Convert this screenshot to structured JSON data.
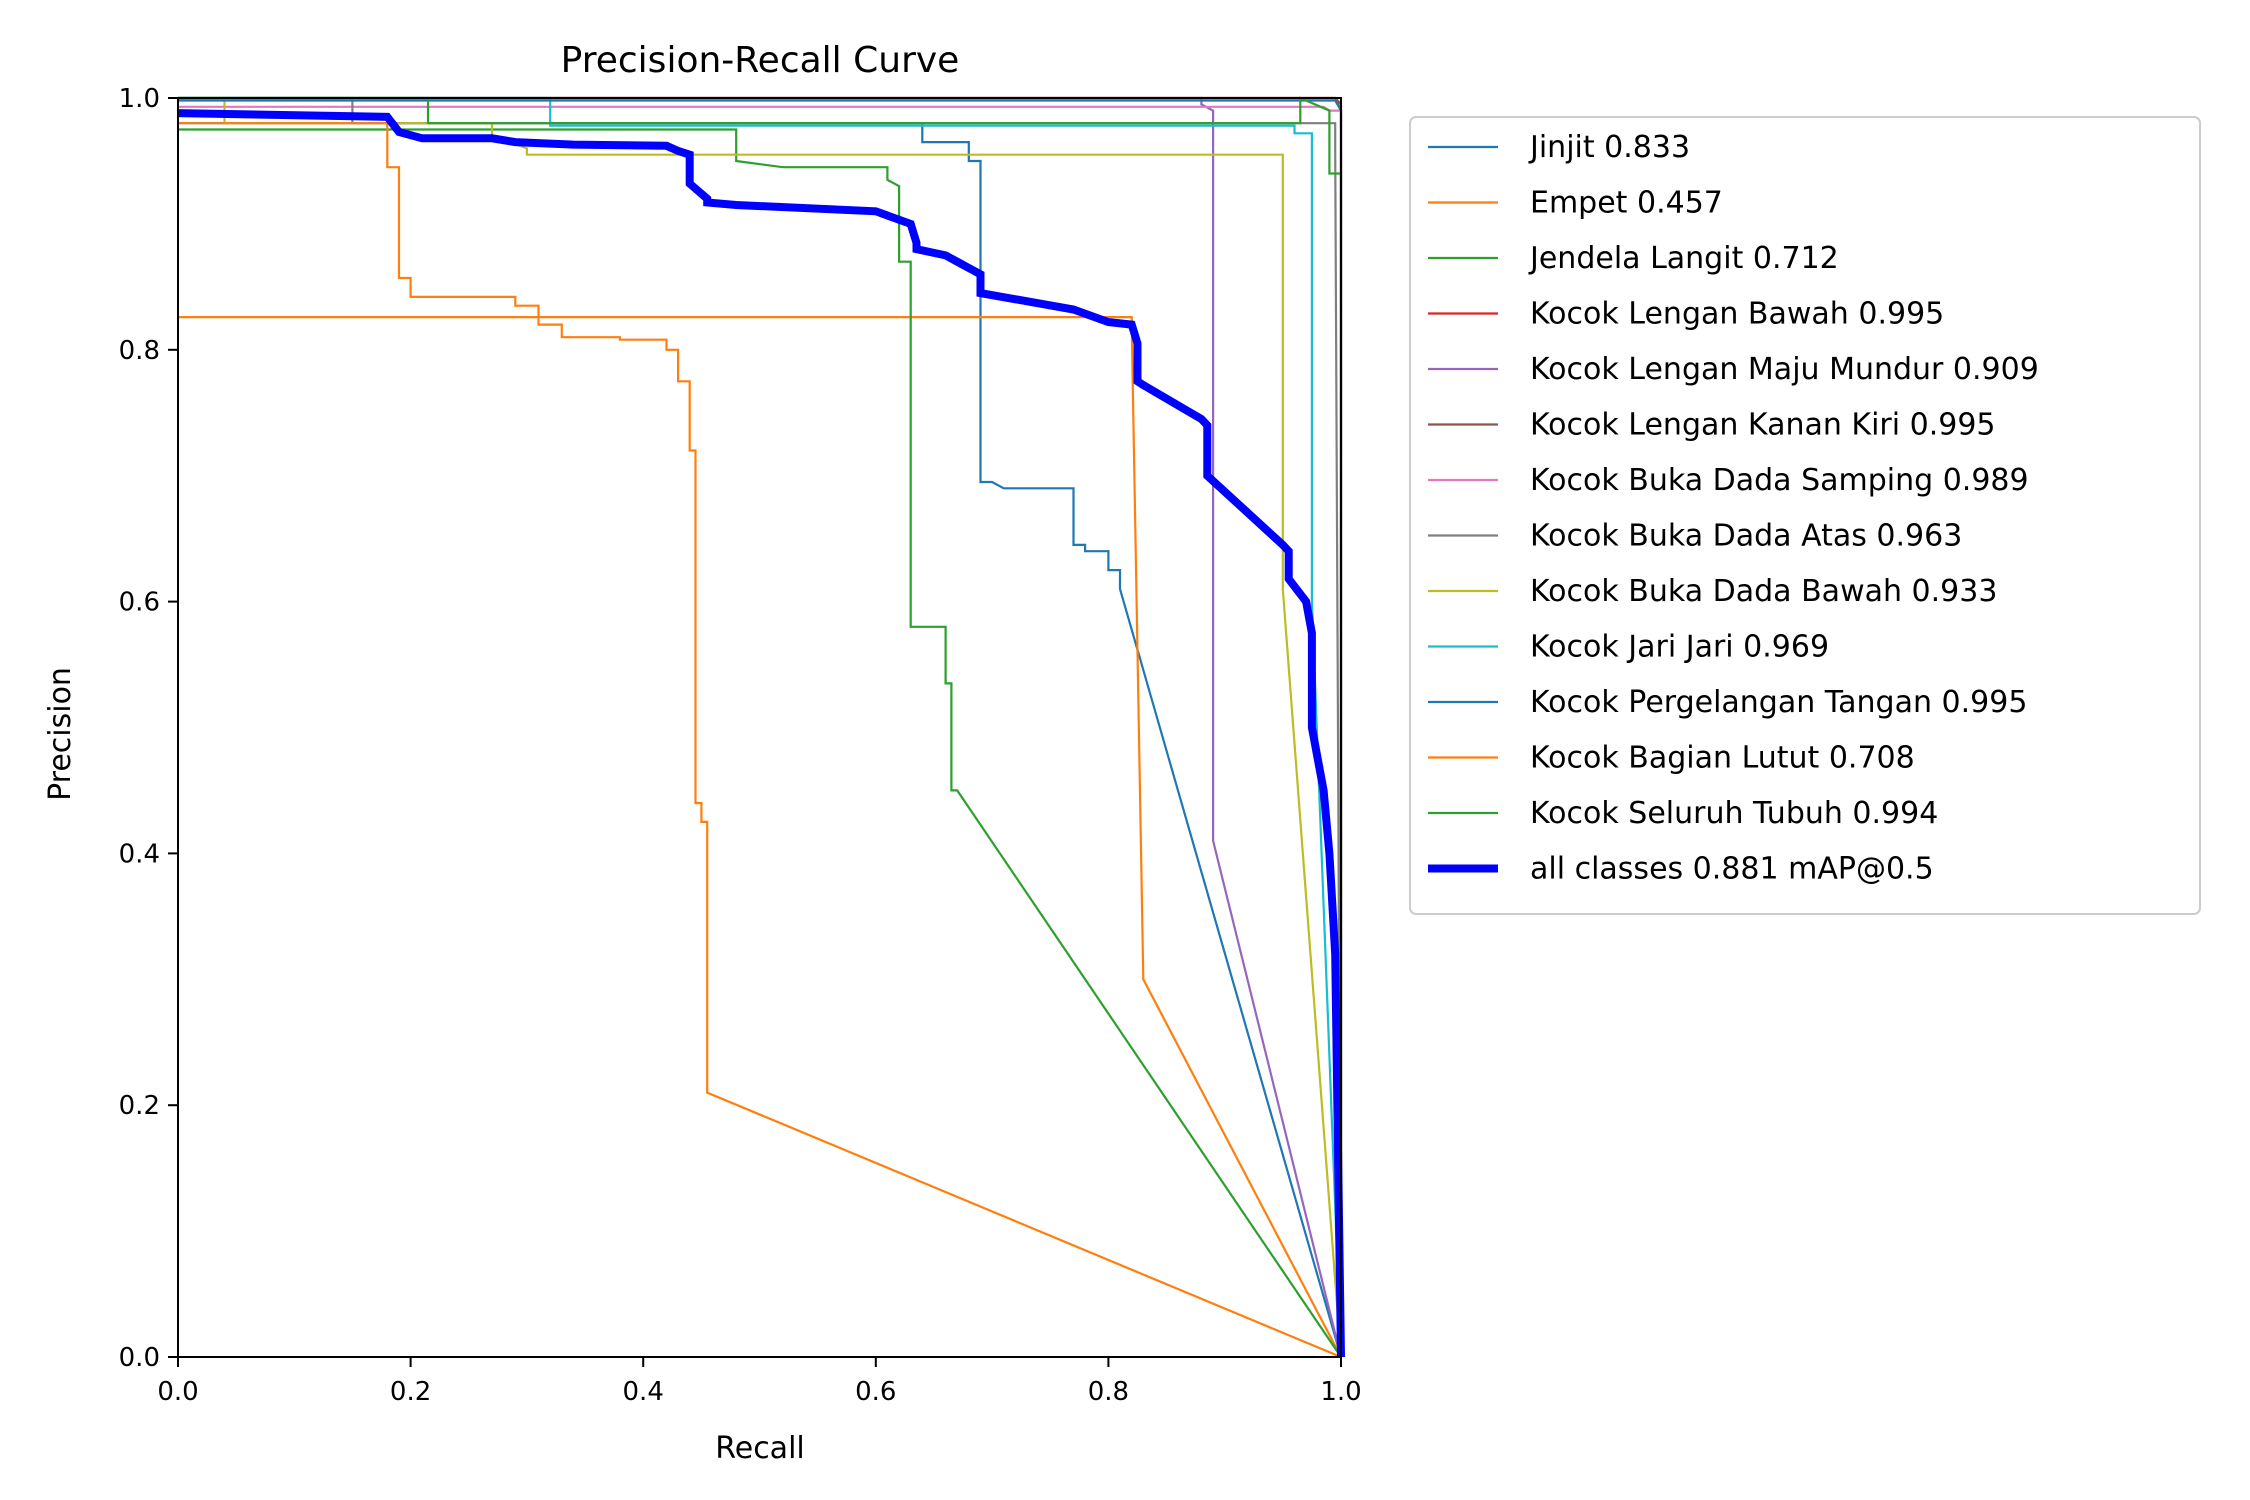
{
  "chart_data": {
    "type": "line",
    "title": "Precision-Recall Curve",
    "xlabel": "Recall",
    "ylabel": "Precision",
    "xlim": [
      0,
      1
    ],
    "ylim": [
      0,
      1
    ],
    "xticks": [
      "0.0",
      "0.2",
      "0.4",
      "0.6",
      "0.8",
      "1.0"
    ],
    "yticks": [
      "0.0",
      "0.2",
      "0.4",
      "0.6",
      "0.8",
      "1.0"
    ],
    "grid": false,
    "legend_position": "outside-right",
    "series": [
      {
        "name": "Jinjit 0.833",
        "color": "#1f77b4",
        "width": "thin",
        "x": [
          0,
          0.63,
          0.64,
          0.64,
          0.68,
          0.68,
          0.69,
          0.69,
          0.7,
          0.71,
          0.77,
          0.77,
          0.78,
          0.78,
          0.8,
          0.8,
          0.81,
          0.81,
          1.0
        ],
        "y": [
          0.98,
          0.98,
          0.98,
          0.965,
          0.965,
          0.95,
          0.95,
          0.695,
          0.695,
          0.69,
          0.69,
          0.645,
          0.645,
          0.64,
          0.64,
          0.625,
          0.625,
          0.61,
          0
        ]
      },
      {
        "name": "Empet 0.457",
        "color": "#ff7f0e",
        "width": "thin",
        "x": [
          0,
          0.82,
          0.82,
          0.83,
          1.0
        ],
        "y": [
          0.826,
          0.826,
          0.82,
          0.3,
          0
        ]
      },
      {
        "name": "Jendela Langit 0.712",
        "color": "#2ca02c",
        "width": "thin",
        "x": [
          0,
          0.48,
          0.48,
          0.52,
          0.61,
          0.61,
          0.62,
          0.62,
          0.63,
          0.63,
          0.64,
          0.64,
          0.66,
          0.66,
          0.665,
          0.665,
          0.67,
          1.0
        ],
        "y": [
          0.975,
          0.975,
          0.95,
          0.945,
          0.945,
          0.935,
          0.93,
          0.87,
          0.87,
          0.58,
          0.58,
          0.58,
          0.58,
          0.535,
          0.535,
          0.45,
          0.45,
          0
        ]
      },
      {
        "name": "Kocok Lengan Bawah 0.995",
        "color": "#d62728",
        "width": "thin",
        "x": [
          0,
          0.995,
          1.0,
          1.0
        ],
        "y": [
          1.0,
          1.0,
          0.99,
          0
        ]
      },
      {
        "name": "Kocok Lengan Maju Mundur 0.909",
        "color": "#9467bd",
        "width": "thin",
        "x": [
          0,
          0.88,
          0.88,
          0.89,
          0.89,
          1.0
        ],
        "y": [
          1.0,
          1.0,
          0.995,
          0.99,
          0.41,
          0
        ]
      },
      {
        "name": "Kocok Lengan Kanan Kiri 0.995",
        "color": "#8c564b",
        "width": "thin",
        "x": [
          0,
          0.995,
          1.0,
          1.0
        ],
        "y": [
          1.0,
          1.0,
          0.995,
          0
        ]
      },
      {
        "name": "Kocok Buka Dada Samping 0.989",
        "color": "#e377c2",
        "width": "thin",
        "x": [
          0,
          0.985,
          0.99,
          1.0,
          1.0
        ],
        "y": [
          0.993,
          0.993,
          0.99,
          0.99,
          0
        ]
      },
      {
        "name": "Kocok Buka Dada Atas 0.963",
        "color": "#7f7f7f",
        "width": "thin",
        "x": [
          0,
          0.15,
          0.15,
          0.995,
          0.995,
          1.0
        ],
        "y": [
          1.0,
          1.0,
          0.98,
          0.98,
          0.96,
          0
        ]
      },
      {
        "name": "Kocok Buka Dada Bawah 0.933",
        "color": "#bcbd22",
        "width": "thin",
        "x": [
          0,
          0.04,
          0.04,
          0.27,
          0.27,
          0.3,
          0.3,
          0.95,
          0.95,
          1.0
        ],
        "y": [
          1.0,
          1.0,
          0.98,
          0.98,
          0.97,
          0.96,
          0.955,
          0.955,
          0.61,
          0
        ]
      },
      {
        "name": "Kocok Jari Jari 0.969",
        "color": "#17becf",
        "width": "thin",
        "x": [
          0,
          0.32,
          0.32,
          0.96,
          0.96,
          0.975,
          0.975,
          1.0
        ],
        "y": [
          1.0,
          1.0,
          0.978,
          0.978,
          0.972,
          0.972,
          0.6,
          0
        ]
      },
      {
        "name": "Kocok Pergelangan Tangan 0.995",
        "color": "#1f77b4",
        "width": "thin",
        "x": [
          0,
          0.995,
          1.0,
          1.0
        ],
        "y": [
          0.998,
          0.998,
          0.99,
          0
        ]
      },
      {
        "name": "Kocok Bagian Lutut 0.708",
        "color": "#ff7f0e",
        "width": "thin",
        "x": [
          0,
          0.18,
          0.18,
          0.19,
          0.19,
          0.2,
          0.2,
          0.29,
          0.29,
          0.31,
          0.31,
          0.33,
          0.33,
          0.38,
          0.38,
          0.42,
          0.42,
          0.43,
          0.43,
          0.44,
          0.44,
          0.445,
          0.445,
          0.45,
          0.45,
          0.455,
          0.455,
          1.0
        ],
        "y": [
          0.98,
          0.98,
          0.945,
          0.945,
          0.857,
          0.857,
          0.842,
          0.842,
          0.835,
          0.835,
          0.82,
          0.82,
          0.81,
          0.81,
          0.808,
          0.808,
          0.8,
          0.8,
          0.775,
          0.775,
          0.72,
          0.72,
          0.44,
          0.44,
          0.425,
          0.425,
          0.21,
          0
        ]
      },
      {
        "name": "Kocok Seluruh Tubuh 0.994",
        "color": "#2ca02c",
        "width": "thin",
        "x": [
          0,
          0.215,
          0.215,
          0.965,
          0.965,
          0.99,
          0.99,
          1.0,
          1.0
        ],
        "y": [
          1.0,
          1.0,
          0.98,
          0.98,
          1.0,
          0.99,
          0.94,
          0.94,
          0
        ]
      },
      {
        "name": "all classes 0.881 mAP@0.5",
        "color": "#0000ff",
        "width": "thick",
        "x": [
          0,
          0.18,
          0.19,
          0.21,
          0.27,
          0.29,
          0.34,
          0.42,
          0.43,
          0.44,
          0.44,
          0.455,
          0.455,
          0.48,
          0.6,
          0.615,
          0.63,
          0.635,
          0.635,
          0.66,
          0.67,
          0.68,
          0.69,
          0.69,
          0.77,
          0.8,
          0.82,
          0.825,
          0.825,
          0.83,
          0.88,
          0.885,
          0.885,
          0.95,
          0.955,
          0.955,
          0.97,
          0.975,
          0.975,
          0.985,
          0.99,
          0.995,
          1.0
        ],
        "y": [
          0.988,
          0.985,
          0.973,
          0.968,
          0.968,
          0.965,
          0.963,
          0.962,
          0.958,
          0.955,
          0.932,
          0.92,
          0.917,
          0.915,
          0.91,
          0.905,
          0.9,
          0.885,
          0.88,
          0.875,
          0.87,
          0.865,
          0.86,
          0.845,
          0.832,
          0.822,
          0.82,
          0.805,
          0.775,
          0.772,
          0.745,
          0.74,
          0.7,
          0.645,
          0.64,
          0.618,
          0.6,
          0.575,
          0.5,
          0.45,
          0.4,
          0.32,
          0.0
        ]
      }
    ]
  }
}
